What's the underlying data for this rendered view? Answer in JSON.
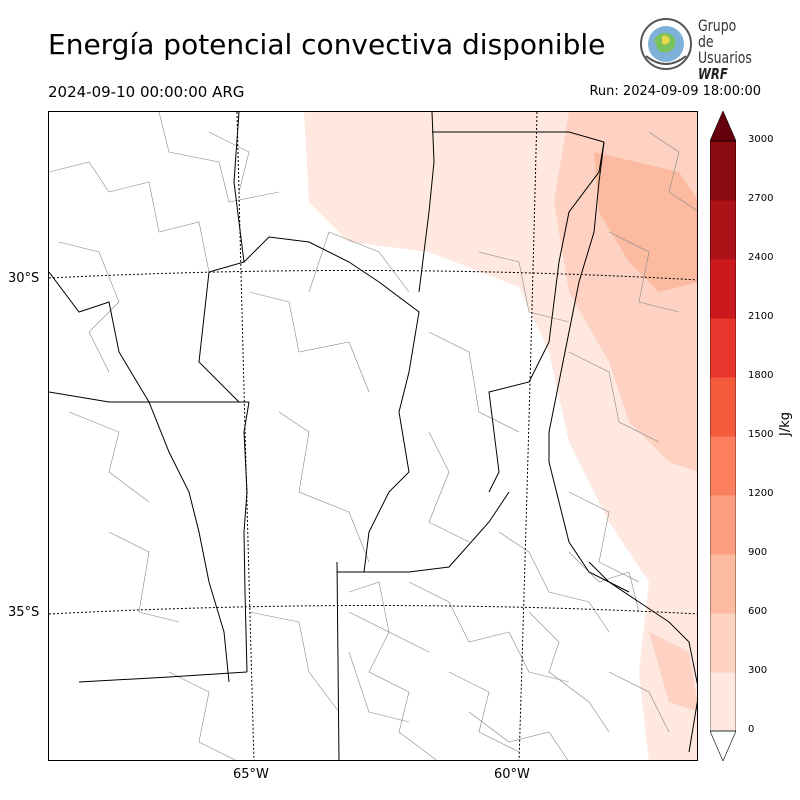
{
  "header": {
    "title": "Energía potencial convectiva disponible",
    "valid_time": "2024-09-10 00:00:00 ARG",
    "run_time": "Run: 2024-09-09 18:00:00"
  },
  "logo": {
    "line1": "Grupo de",
    "line2": "Usuarios",
    "line3": "WRF"
  },
  "map": {
    "lat_labels": [
      "30°S",
      "35°S"
    ],
    "lon_labels": [
      "65°W",
      "60°W"
    ]
  },
  "colorbar": {
    "unit": "J/kg",
    "ticks": [
      "0",
      "300",
      "600",
      "900",
      "1200",
      "1500",
      "1800",
      "2100",
      "2400",
      "2700",
      "3000"
    ],
    "colors": [
      "#fee8e0",
      "#fdd2c2",
      "#fcbba1",
      "#fc9f81",
      "#fb7f5f",
      "#f55a3d",
      "#e9362c",
      "#cb1a1e",
      "#ac1217",
      "#8a0a12",
      "#67000d"
    ],
    "extend": "both"
  },
  "colors": {
    "border": "#000000",
    "dept_lines": "#888888"
  }
}
